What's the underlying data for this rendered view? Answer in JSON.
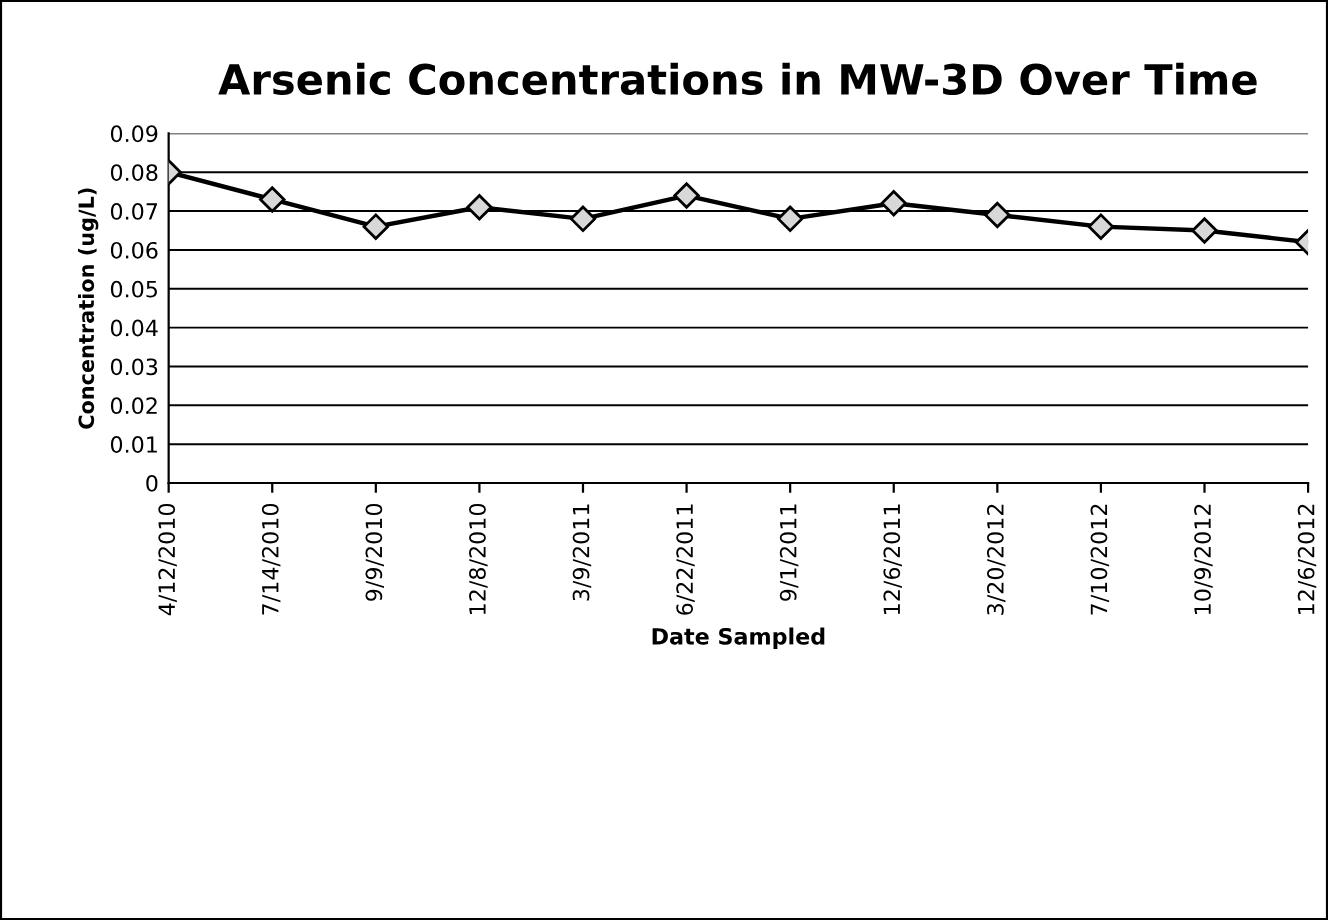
{
  "chart_data": {
    "type": "line",
    "title": "Arsenic Concentrations in MW-3D Over Time",
    "xlabel": "Date Sampled",
    "ylabel": "Concentration (ug/L)",
    "categories": [
      "4/12/2010",
      "7/14/2010",
      "9/9/2010",
      "12/8/2010",
      "3/9/2011",
      "6/22/2011",
      "9/1/2011",
      "12/6/2011",
      "3/20/2012",
      "7/10/2012",
      "10/9/2012",
      "12/6/2012"
    ],
    "values": [
      0.08,
      0.073,
      0.066,
      0.071,
      0.068,
      0.074,
      0.068,
      0.072,
      0.069,
      0.066,
      0.065,
      0.062
    ],
    "color": "#000000",
    "marker": "diamond",
    "line_style": "solid",
    "ylim": [
      0,
      0.09
    ],
    "yticks": [
      {
        "value": 0,
        "label": "0"
      },
      {
        "value": 0.01,
        "label": "0.01"
      },
      {
        "value": 0.02,
        "label": "0.02"
      },
      {
        "value": 0.03,
        "label": "0.03"
      },
      {
        "value": 0.04,
        "label": "0.04"
      },
      {
        "value": 0.05,
        "label": "0.05"
      },
      {
        "value": 0.06,
        "label": "0.06"
      },
      {
        "value": 0.07,
        "label": "0.07"
      },
      {
        "value": 0.08,
        "label": "0.08"
      },
      {
        "value": 0.09,
        "label": "0.09"
      }
    ],
    "grid": "y",
    "legend": false
  }
}
